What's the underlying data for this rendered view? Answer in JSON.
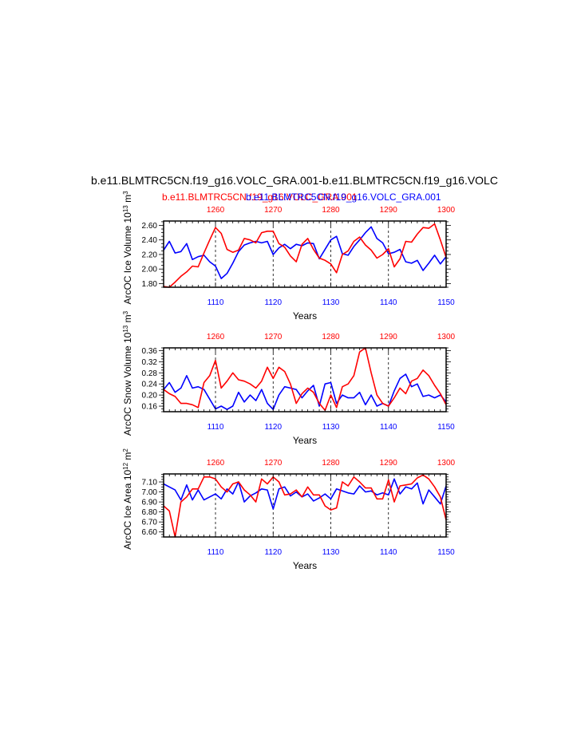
{
  "title": "b.e11.BLMTRC5CN.f19_g16.VOLC_GRA.001-b.e11.BLMTRC5CN.f19_g16.VOLC",
  "subtitle_red": "b.e11.BLMTRC5CN.f19_g16.VOLC_GRA.001",
  "subtitle_blue": "b.e11.BLMTRC5CN.f19_g16.VOLC_GRA.001",
  "colors": {
    "series_a": "#0000ff",
    "series_b": "#ff0000"
  },
  "chart_data": [
    {
      "type": "line",
      "ylabel": "ArcOC Ice Volume 10^13 m^3",
      "xlabel": "Years",
      "xlim_bottom": [
        1101,
        1150
      ],
      "xlim_top": [
        1251,
        1300
      ],
      "ylim": [
        1.75,
        2.66
      ],
      "yticks": [
        "2.60",
        "2.40",
        "2.20",
        "2.00",
        "1.80"
      ],
      "yticks_values": [
        2.6,
        2.4,
        2.2,
        2.0,
        1.8
      ],
      "xticks_bottom": [
        1110,
        1120,
        1130,
        1140,
        1150
      ],
      "xticks_top": [
        1260,
        1270,
        1280,
        1290,
        1300
      ],
      "series": [
        {
          "color": "blue",
          "axis": "bottom",
          "x": [
            1101,
            1102,
            1103,
            1104,
            1105,
            1106,
            1107,
            1108,
            1109,
            1110,
            1111,
            1112,
            1113,
            1114,
            1115,
            1116,
            1117,
            1118,
            1119,
            1120,
            1121,
            1122,
            1123,
            1124,
            1125,
            1126,
            1127,
            1128,
            1129,
            1130,
            1131,
            1132,
            1133,
            1134,
            1135,
            1136,
            1137,
            1138,
            1139,
            1140,
            1141,
            1142,
            1143,
            1144,
            1145,
            1146,
            1147,
            1148,
            1149,
            1150
          ],
          "values": [
            2.26,
            2.38,
            2.22,
            2.24,
            2.35,
            2.13,
            2.17,
            2.19,
            2.1,
            2.04,
            1.87,
            1.94,
            2.08,
            2.24,
            2.33,
            2.36,
            2.38,
            2.36,
            2.38,
            2.2,
            2.29,
            2.34,
            2.28,
            2.34,
            2.32,
            2.36,
            2.35,
            2.14,
            2.27,
            2.4,
            2.45,
            2.21,
            2.19,
            2.31,
            2.4,
            2.5,
            2.58,
            2.42,
            2.36,
            2.21,
            2.23,
            2.27,
            2.1,
            2.08,
            2.12,
            1.98,
            2.08,
            2.19,
            2.07,
            2.17
          ]
        },
        {
          "color": "red",
          "axis": "top",
          "x": [
            1251,
            1252,
            1253,
            1254,
            1255,
            1256,
            1257,
            1258,
            1259,
            1260,
            1261,
            1262,
            1263,
            1264,
            1265,
            1266,
            1267,
            1268,
            1269,
            1270,
            1271,
            1272,
            1273,
            1274,
            1275,
            1276,
            1277,
            1278,
            1279,
            1280,
            1281,
            1282,
            1283,
            1284,
            1285,
            1286,
            1287,
            1288,
            1289,
            1290,
            1291,
            1292,
            1293,
            1294,
            1295,
            1296,
            1297,
            1298,
            1299,
            1300
          ],
          "values": [
            1.76,
            1.75,
            1.82,
            1.9,
            1.96,
            2.04,
            2.03,
            2.22,
            2.4,
            2.57,
            2.49,
            2.27,
            2.23,
            2.26,
            2.42,
            2.4,
            2.36,
            2.5,
            2.52,
            2.52,
            2.35,
            2.3,
            2.18,
            2.1,
            2.34,
            2.42,
            2.27,
            2.15,
            2.12,
            2.07,
            1.95,
            2.2,
            2.25,
            2.38,
            2.44,
            2.33,
            2.26,
            2.15,
            2.2,
            2.28,
            2.03,
            2.14,
            2.38,
            2.37,
            2.48,
            2.57,
            2.56,
            2.62,
            2.4,
            2.16
          ]
        }
      ]
    },
    {
      "type": "line",
      "ylabel": "ArcOC Snow Volume 10^13 m^3",
      "xlabel": "Years",
      "xlim_bottom": [
        1101,
        1150
      ],
      "xlim_top": [
        1251,
        1300
      ],
      "ylim": [
        0.14,
        0.37
      ],
      "yticks": [
        "0.36",
        "0.32",
        "0.28",
        "0.24",
        "0.20",
        "0.16"
      ],
      "yticks_values": [
        0.36,
        0.32,
        0.28,
        0.24,
        0.2,
        0.16
      ],
      "xticks_bottom": [
        1110,
        1120,
        1130,
        1140,
        1150
      ],
      "xticks_top": [
        1260,
        1270,
        1280,
        1290,
        1300
      ],
      "series": [
        {
          "color": "blue",
          "axis": "bottom",
          "x": [
            1101,
            1102,
            1103,
            1104,
            1105,
            1106,
            1107,
            1108,
            1109,
            1110,
            1111,
            1112,
            1113,
            1114,
            1115,
            1116,
            1117,
            1118,
            1119,
            1120,
            1121,
            1122,
            1123,
            1124,
            1125,
            1126,
            1127,
            1128,
            1129,
            1130,
            1131,
            1132,
            1133,
            1134,
            1135,
            1136,
            1137,
            1138,
            1139,
            1140,
            1141,
            1142,
            1143,
            1144,
            1145,
            1146,
            1147,
            1148,
            1149,
            1150
          ],
          "values": [
            0.22,
            0.245,
            0.21,
            0.225,
            0.27,
            0.225,
            0.23,
            0.22,
            0.185,
            0.15,
            0.16,
            0.148,
            0.16,
            0.21,
            0.175,
            0.2,
            0.18,
            0.22,
            0.17,
            0.148,
            0.2,
            0.23,
            0.225,
            0.22,
            0.19,
            0.215,
            0.235,
            0.16,
            0.24,
            0.245,
            0.17,
            0.2,
            0.19,
            0.19,
            0.21,
            0.165,
            0.2,
            0.16,
            0.17,
            0.16,
            0.215,
            0.26,
            0.275,
            0.23,
            0.24,
            0.195,
            0.2,
            0.19,
            0.2,
            0.175
          ]
        },
        {
          "color": "red",
          "axis": "top",
          "x": [
            1251,
            1252,
            1253,
            1254,
            1255,
            1256,
            1257,
            1258,
            1259,
            1260,
            1261,
            1262,
            1263,
            1264,
            1265,
            1266,
            1267,
            1268,
            1269,
            1270,
            1271,
            1272,
            1273,
            1274,
            1275,
            1276,
            1277,
            1278,
            1279,
            1280,
            1281,
            1282,
            1283,
            1284,
            1285,
            1286,
            1287,
            1288,
            1289,
            1290,
            1291,
            1292,
            1293,
            1294,
            1295,
            1296,
            1297,
            1298,
            1299,
            1300
          ],
          "values": [
            0.22,
            0.205,
            0.195,
            0.17,
            0.17,
            0.165,
            0.155,
            0.245,
            0.27,
            0.325,
            0.225,
            0.25,
            0.28,
            0.255,
            0.25,
            0.24,
            0.225,
            0.25,
            0.3,
            0.26,
            0.3,
            0.285,
            0.24,
            0.17,
            0.205,
            0.225,
            0.21,
            0.17,
            0.145,
            0.2,
            0.155,
            0.23,
            0.24,
            0.27,
            0.355,
            0.37,
            0.28,
            0.2,
            0.17,
            0.16,
            0.19,
            0.225,
            0.205,
            0.25,
            0.26,
            0.29,
            0.27,
            0.235,
            0.205,
            0.165
          ]
        }
      ]
    },
    {
      "type": "line",
      "ylabel": "ArcOC Ice Area 10^12 m^2",
      "xlabel": "Years",
      "xlim_bottom": [
        1101,
        1150
      ],
      "xlim_top": [
        1251,
        1300
      ],
      "ylim": [
        6.55,
        7.18
      ],
      "yticks": [
        "7.10",
        "7.00",
        "6.90",
        "6.80",
        "6.70",
        "6.60"
      ],
      "yticks_values": [
        7.1,
        7.0,
        6.9,
        6.8,
        6.7,
        6.6
      ],
      "xticks_bottom": [
        1110,
        1120,
        1130,
        1140,
        1150
      ],
      "xticks_top": [
        1260,
        1270,
        1280,
        1290,
        1300
      ],
      "series": [
        {
          "color": "blue",
          "axis": "bottom",
          "x": [
            1101,
            1102,
            1103,
            1104,
            1105,
            1106,
            1107,
            1108,
            1109,
            1110,
            1111,
            1112,
            1113,
            1114,
            1115,
            1116,
            1117,
            1118,
            1119,
            1120,
            1121,
            1122,
            1123,
            1124,
            1125,
            1126,
            1127,
            1128,
            1129,
            1130,
            1131,
            1132,
            1133,
            1134,
            1135,
            1136,
            1137,
            1138,
            1139,
            1140,
            1141,
            1142,
            1143,
            1144,
            1145,
            1146,
            1147,
            1148,
            1149,
            1150
          ],
          "values": [
            7.08,
            7.05,
            7.02,
            6.92,
            7.07,
            6.92,
            7.02,
            6.92,
            6.95,
            6.98,
            6.93,
            7.03,
            6.98,
            7.1,
            6.9,
            6.96,
            6.99,
            7.03,
            7.02,
            6.83,
            7.03,
            7.05,
            6.96,
            7.0,
            6.95,
            6.98,
            6.91,
            6.94,
            6.98,
            6.93,
            7.03,
            7.01,
            6.99,
            6.98,
            7.06,
            7.0,
            7.01,
            6.97,
            6.99,
            6.97,
            7.13,
            6.98,
            7.05,
            7.03,
            7.09,
            6.88,
            7.02,
            6.95,
            6.88,
            7.06
          ]
        },
        {
          "color": "red",
          "axis": "top",
          "x": [
            1251,
            1252,
            1253,
            1254,
            1255,
            1256,
            1257,
            1258,
            1259,
            1260,
            1261,
            1262,
            1263,
            1264,
            1265,
            1266,
            1267,
            1268,
            1269,
            1270,
            1271,
            1272,
            1273,
            1274,
            1275,
            1276,
            1277,
            1278,
            1279,
            1280,
            1281,
            1282,
            1283,
            1284,
            1285,
            1286,
            1287,
            1288,
            1289,
            1290,
            1291,
            1292,
            1293,
            1294,
            1295,
            1296,
            1297,
            1298,
            1299,
            1300
          ],
          "values": [
            6.86,
            6.81,
            6.55,
            6.9,
            6.95,
            7.03,
            7.03,
            7.15,
            7.15,
            7.13,
            7.05,
            7.0,
            7.08,
            7.1,
            7.02,
            6.97,
            6.9,
            7.13,
            7.08,
            7.15,
            7.1,
            6.97,
            6.98,
            7.02,
            6.95,
            7.05,
            6.97,
            6.97,
            6.86,
            6.82,
            6.84,
            7.1,
            7.06,
            7.15,
            7.1,
            7.04,
            7.04,
            6.93,
            6.93,
            7.12,
            6.9,
            7.06,
            7.07,
            7.08,
            7.14,
            7.17,
            7.13,
            7.05,
            6.95,
            6.72
          ]
        }
      ]
    }
  ]
}
